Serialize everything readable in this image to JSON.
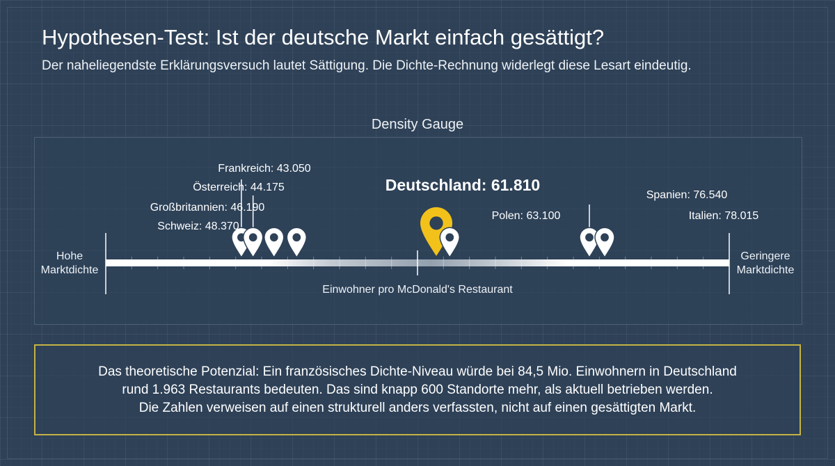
{
  "header": {
    "title": "Hypothesen-Test: Ist der deutsche Markt einfach gesättigt?",
    "subtitle": "Der naheliegendste Erklärungsversuch lautet Sättigung. Die Dichte-Rechnung widerlegt diese Lesart eindeutig."
  },
  "gauge": {
    "heading": "Density Gauge",
    "left_label": [
      "Hohe",
      "Marktdichte"
    ],
    "right_label": [
      "Geringere",
      "Marktdichte"
    ],
    "axis_label": "Einwohner pro McDonald's Restaurant"
  },
  "chart_data": {
    "type": "scatter",
    "title": "Density Gauge",
    "xlabel": "Einwohner pro McDonald's Restaurant",
    "ylabel": "",
    "xlim": [
      30000,
      90000
    ],
    "grid": false,
    "points": [
      {
        "label": "Frankreich: 43.050",
        "value": 43050
      },
      {
        "label": "Österreich: 44.175",
        "value": 44175
      },
      {
        "label": "Großbritannien: 46.190",
        "value": 46190
      },
      {
        "label": "Schweiz: 48.370",
        "value": 48370
      },
      {
        "label": "Deutschland: 61.810",
        "value": 61810,
        "highlight": true
      },
      {
        "label": "Polen: 63.100",
        "value": 63100
      },
      {
        "label": "Spanien: 76.540",
        "value": 76540
      },
      {
        "label": "Italien: 78.015",
        "value": 78015
      }
    ],
    "colors": {
      "highlight": "#f2c21b",
      "marker": "#ffffff",
      "axis": "#ffffff"
    }
  },
  "info": {
    "lines": [
      "Das theoretische Potenzial: Ein französisches Dichte-Niveau würde bei 84,5 Mio. Einwohnern in Deutschland",
      "rund 1.963 Restaurants bedeuten. Das sind knapp 600 Standorte mehr, als aktuell betrieben werden.",
      "Die Zahlen verweisen auf einen strukturell anders verfassten, nicht auf einen gesättigten Markt."
    ],
    "border_color": "#c5b345"
  }
}
